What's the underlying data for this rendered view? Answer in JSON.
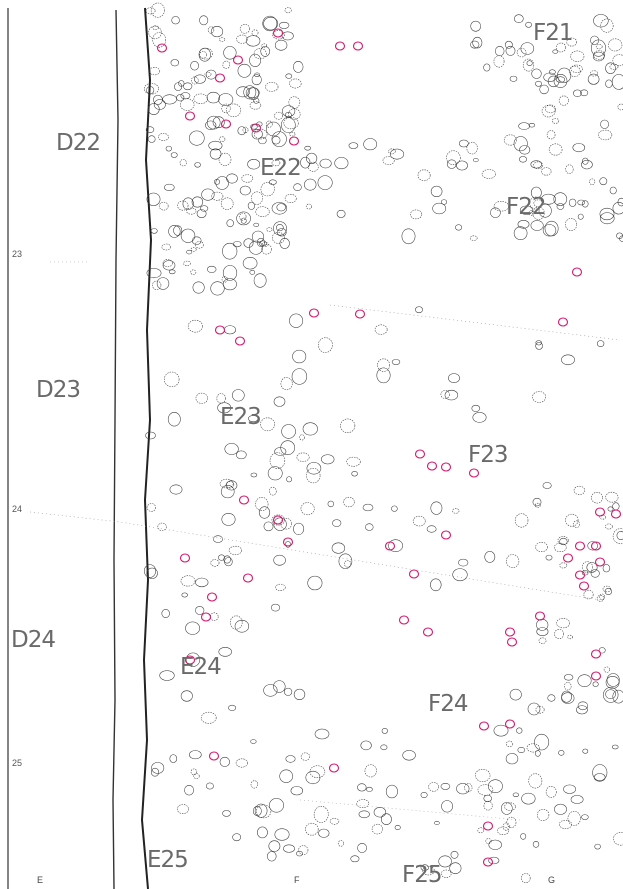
{
  "grid_labels": {
    "d22": "D22",
    "d23": "D23",
    "d24": "D24",
    "e22": "E22",
    "e23": "E23",
    "e24": "E24",
    "e25": "E25",
    "f21": "F21",
    "f22": "F22",
    "f23": "F23",
    "f24": "F24",
    "f25": "F25"
  },
  "row_labels": {
    "r23": "23",
    "r24": "24",
    "r25": "25"
  },
  "col_labels": {
    "e": "E",
    "f": "F",
    "g": "G"
  },
  "colors": {
    "ink": "#3a3a3a",
    "highlight": "#d4166e",
    "label": "#6a6a6a"
  }
}
